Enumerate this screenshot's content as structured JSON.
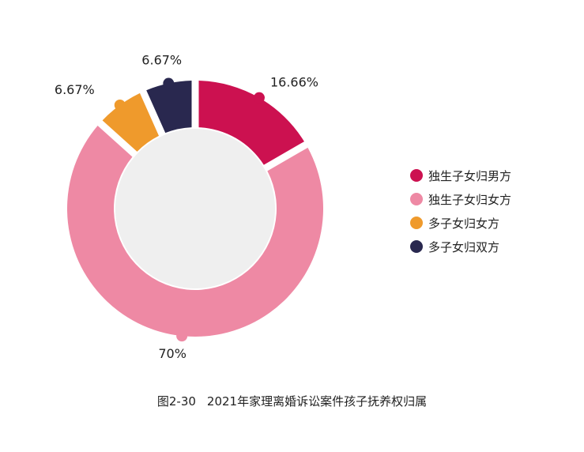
{
  "chart_data": {
    "type": "pie",
    "variant": "donut",
    "title": "",
    "categories": [
      "独生子女归男方",
      "独生子女归女方",
      "多子女归女方",
      "多子女归双方"
    ],
    "values": [
      16.66,
      70,
      6.67,
      6.67
    ],
    "value_labels": [
      "16.66%",
      "70%",
      "6.67%",
      "6.67%"
    ],
    "colors": [
      "#cc1150",
      "#ee89a4",
      "#ef9a2c",
      "#29284f"
    ],
    "center_color": "#efefef",
    "legend_placement": "right"
  },
  "caption": {
    "figure_number": "图2-30",
    "text": "2021年家理离婚诉讼案件孩子抚养权归属"
  }
}
